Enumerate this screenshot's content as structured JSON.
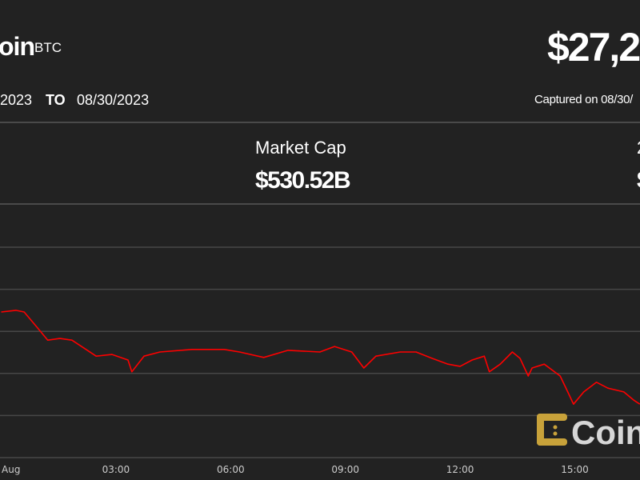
{
  "header": {
    "coin_name": "oin",
    "ticker": "BTC",
    "price": "$27,2",
    "date_from": "2023",
    "date_to_label": "TO",
    "date_to": "08/30/2023",
    "captured": "Captured on 08/30/"
  },
  "stats": {
    "market_cap_label": "Market Cap",
    "market_cap_value": "$530.52B",
    "right_label": "2",
    "right_value": "$"
  },
  "logo": {
    "text": "Coin",
    "color": "#c8a23a"
  },
  "chart_data": {
    "type": "line",
    "line_color": "#ff0000",
    "grid": true,
    "x_tick_labels": [
      "Aug",
      "03:00",
      "06:00",
      "09:00",
      "12:00",
      "15:00"
    ],
    "x_ticks": [
      "00:00",
      "03:00",
      "06:00",
      "09:00",
      "12:00",
      "15:00"
    ],
    "ylim": [
      27100,
      27600
    ],
    "y_gridlines": [
      27100,
      27200,
      27300,
      27400,
      27500,
      27600
    ],
    "x": [
      "00:00",
      "00:23",
      "00:36",
      "00:55",
      "01:13",
      "01:32",
      "01:51",
      "02:10",
      "02:29",
      "02:54",
      "03:19",
      "03:25",
      "03:44",
      "04:09",
      "04:59",
      "05:50",
      "06:14",
      "06:52",
      "07:30",
      "08:20",
      "08:43",
      "09:10",
      "09:29",
      "09:48",
      "10:26",
      "10:51",
      "11:16",
      "11:41",
      "12:00",
      "12:19",
      "12:38",
      "12:46",
      "13:03",
      "13:22",
      "13:34",
      "13:47",
      "13:53",
      "14:12",
      "14:37",
      "14:49",
      "14:58",
      "15:14",
      "15:34",
      "15:52",
      "16:17",
      "16:32",
      "16:42"
    ],
    "y": [
      27446,
      27450,
      27446,
      27412,
      27379,
      27383,
      27379,
      27360,
      27341,
      27345,
      27332,
      27304,
      27341,
      27351,
      27357,
      27357,
      27351,
      27338,
      27355,
      27351,
      27364,
      27351,
      27313,
      27341,
      27351,
      27351,
      27336,
      27322,
      27317,
      27332,
      27341,
      27304,
      27322,
      27351,
      27336,
      27294,
      27313,
      27322,
      27294,
      27256,
      27227,
      27256,
      27279,
      27265,
      27256,
      27237,
      27227
    ]
  }
}
